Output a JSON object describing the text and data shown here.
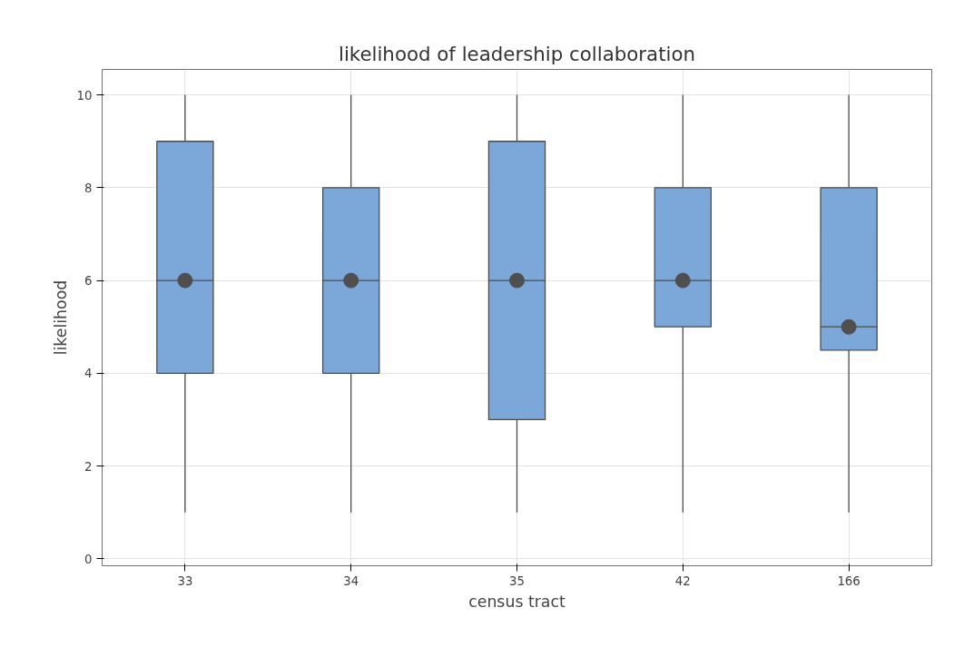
{
  "chart_data": {
    "type": "box",
    "title": "likelihood of leadership collaboration",
    "xlabel": "census tract",
    "ylabel": "likelihood",
    "categories": [
      "33",
      "34",
      "35",
      "42",
      "166"
    ],
    "series": [
      {
        "color": "#7ba7d9",
        "boxes": [
          {
            "low": 1,
            "q1": 4,
            "median": 6,
            "q3": 9,
            "high": 10,
            "mean": 6
          },
          {
            "low": 1,
            "q1": 4,
            "median": 6,
            "q3": 8,
            "high": 10,
            "mean": 6
          },
          {
            "low": 1,
            "q1": 3,
            "median": 6,
            "q3": 9,
            "high": 10,
            "mean": 6
          },
          {
            "low": 1,
            "q1": 5,
            "median": 6,
            "q3": 8,
            "high": 10,
            "mean": 6
          },
          {
            "low": 1,
            "q1": 4.5,
            "median": 5,
            "q3": 8,
            "high": 10,
            "mean": 5
          }
        ]
      }
    ],
    "ylim": [
      -0.15,
      10.55
    ],
    "yticks": [
      0,
      2,
      4,
      6,
      8,
      10
    ],
    "grid": true,
    "marker": "circle"
  }
}
